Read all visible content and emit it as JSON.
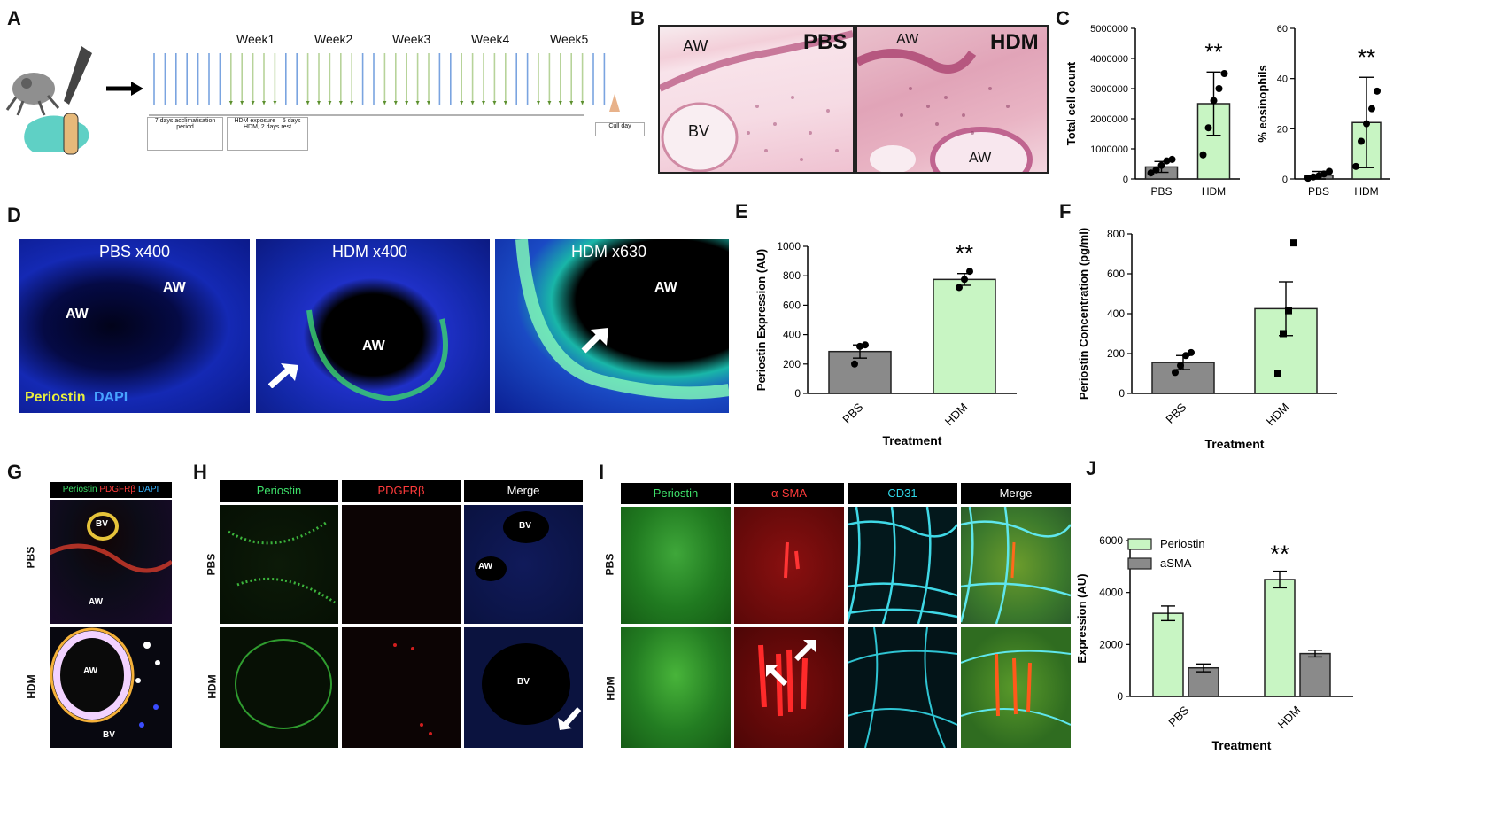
{
  "colors": {
    "green_bar": "#c8f5c3",
    "grey_bar": "#8a8a8a",
    "pbs_dot": "#000000",
    "dapi_blue": "#1a2fd6",
    "periostin_green": "#27c23a",
    "pdgfrb_red": "#e01010",
    "cd31_cyan": "#2fd6e6",
    "he_pink": "#f1c6d3"
  },
  "panels": {
    "a": {
      "label": "A",
      "weeks": [
        "Week1",
        "Week2",
        "Week3",
        "Week4",
        "Week5"
      ],
      "box1": "7 days acclimatisation period",
      "box2": "HDM exposure – 5 days HDM, 2 days rest",
      "box3": "Cull day"
    },
    "b": {
      "label": "B",
      "pbs": "PBS",
      "hdm": "HDM",
      "aw": "AW",
      "bv": "BV"
    },
    "c": {
      "label": "C"
    },
    "d": {
      "label": "D",
      "titles": [
        "PBS x400",
        "HDM x400",
        "HDM x630"
      ],
      "aw": "AW",
      "legend_periostin": "Periostin",
      "legend_dapi": "DAPI"
    },
    "e": {
      "label": "E"
    },
    "f": {
      "label": "F"
    },
    "g": {
      "label": "G",
      "hdr_periostin": "Periostin",
      "hdr_pdgfrb": "PDGFRβ",
      "hdr_dapi": "DAPI",
      "row_pbs": "PBS",
      "row_hdm": "HDM",
      "bv": "BV",
      "aw": "AW"
    },
    "h": {
      "label": "H",
      "headers": [
        "Periostin",
        "PDGFRβ",
        "Merge"
      ],
      "row_pbs": "PBS",
      "row_hdm": "HDM",
      "bv": "BV",
      "aw": "AW"
    },
    "i": {
      "label": "I",
      "headers": [
        "Periostin",
        "α-SMA",
        "CD31",
        "Merge"
      ],
      "row_pbs": "PBS",
      "row_hdm": "HDM"
    },
    "j": {
      "label": "J"
    }
  },
  "chart_data": [
    {
      "id": "C-left",
      "type": "bar",
      "categories": [
        "PBS",
        "HDM"
      ],
      "values": [
        400000,
        2500000
      ],
      "errors": [
        180000,
        1050000
      ],
      "points": [
        [
          200000,
          300000,
          450000,
          600000,
          650000
        ],
        [
          800000,
          1700000,
          2600000,
          3000000,
          3500000
        ]
      ],
      "ylabel": "Total cell count",
      "ylim": [
        0,
        5000000
      ],
      "yticks": [
        0,
        1000000,
        2000000,
        3000000,
        4000000,
        5000000
      ],
      "significance": [
        "",
        "**"
      ]
    },
    {
      "id": "C-right",
      "type": "bar",
      "categories": [
        "PBS",
        "HDM"
      ],
      "values": [
        1.5,
        22.5
      ],
      "errors": [
        1.5,
        18
      ],
      "points": [
        [
          0.3,
          0.8,
          1.2,
          2,
          3
        ],
        [
          5,
          15,
          22,
          28,
          35
        ]
      ],
      "ylabel": "% eosinophils",
      "ylim": [
        0,
        60
      ],
      "yticks": [
        0,
        20,
        40,
        60
      ],
      "significance": [
        "",
        "**"
      ]
    },
    {
      "id": "E",
      "type": "bar",
      "categories": [
        "PBS",
        "HDM"
      ],
      "values": [
        285,
        775
      ],
      "errors": [
        45,
        40
      ],
      "points": [
        [
          200,
          320,
          330
        ],
        [
          720,
          775,
          830
        ]
      ],
      "ylabel": "Periostin Expression (AU)",
      "xlabel": "Treatment",
      "ylim": [
        0,
        1000
      ],
      "yticks": [
        0,
        200,
        400,
        600,
        800,
        1000
      ],
      "significance": [
        "",
        "**"
      ]
    },
    {
      "id": "F",
      "type": "bar",
      "categories": [
        "PBS",
        "HDM"
      ],
      "values": [
        155,
        425
      ],
      "errors": [
        35,
        135
      ],
      "points": [
        [
          105,
          140,
          190,
          205
        ],
        [
          100,
          300,
          415,
          755
        ]
      ],
      "ylabel": "Periostin Concentration (pg/ml)",
      "xlabel": "Treatment",
      "ylim": [
        0,
        800
      ],
      "yticks": [
        0,
        200,
        400,
        600,
        800
      ],
      "significance": [
        "",
        ""
      ]
    },
    {
      "id": "J",
      "type": "bar",
      "categories": [
        "PBS",
        "HDM"
      ],
      "series": [
        {
          "name": "Periostin",
          "values": [
            3200,
            4500
          ],
          "errors": [
            280,
            320
          ]
        },
        {
          "name": "aSMA",
          "values": [
            1100,
            1650
          ],
          "errors": [
            150,
            130
          ]
        }
      ],
      "ylabel": "Expression (AU)",
      "xlabel": "Treatment",
      "ylim": [
        0,
        6000
      ],
      "yticks": [
        0,
        2000,
        4000,
        6000
      ],
      "significance": [
        "",
        "**"
      ],
      "legend": "top-left"
    }
  ]
}
